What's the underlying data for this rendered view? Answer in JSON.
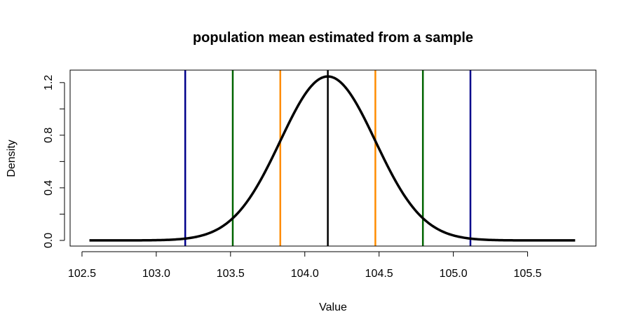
{
  "chart_data": {
    "type": "line",
    "title": "population mean estimated from a sample",
    "xlabel": "Value",
    "ylabel": "Density",
    "xlim": [
      102.42,
      105.96
    ],
    "ylim": [
      -0.043,
      1.295
    ],
    "x_ticks": [
      102.5,
      103.0,
      103.5,
      104.0,
      104.5,
      105.0,
      105.5
    ],
    "x_tick_labels": [
      "102.5",
      "103.0",
      "103.5",
      "104.0",
      "104.5",
      "105.0",
      "105.5"
    ],
    "y_ticks": [
      0.0,
      0.2,
      0.4,
      0.6,
      0.8,
      1.0,
      1.2
    ],
    "y_tick_labels": [
      "0.0",
      "",
      "0.4",
      "",
      "0.8",
      "",
      "1.2"
    ],
    "grid": false,
    "curve": {
      "distribution": "normal",
      "mean": 104.155,
      "sd": 0.32,
      "x_range": [
        102.55,
        105.82
      ],
      "color": "#000000"
    },
    "vlines": [
      {
        "x": 104.155,
        "color": "#000000"
      },
      {
        "x": 103.835,
        "color": "#FF8C00"
      },
      {
        "x": 104.475,
        "color": "#FF8C00"
      },
      {
        "x": 103.515,
        "color": "#006400"
      },
      {
        "x": 104.795,
        "color": "#006400"
      },
      {
        "x": 103.195,
        "color": "#00008B"
      },
      {
        "x": 105.115,
        "color": "#00008B"
      }
    ]
  }
}
